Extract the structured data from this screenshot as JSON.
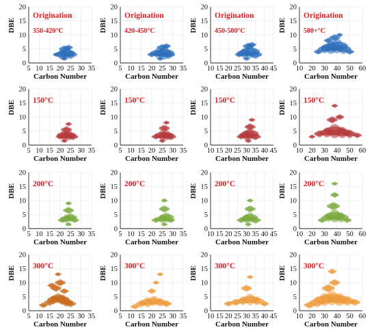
{
  "chart_data": [
    {
      "type": "scatter",
      "title": "Origination",
      "subtitle": "350-420°C",
      "xlabel": "Carbon Number",
      "ylabel": "DBE",
      "xlim": [
        5,
        35
      ],
      "ylim": [
        0,
        20
      ],
      "xticks": [
        5,
        10,
        15,
        20,
        25,
        30,
        35
      ],
      "yticks": [
        0,
        5,
        10,
        15,
        20
      ],
      "color": "#2e6fba",
      "bubbles": [
        {
          "x": 18,
          "y": 3,
          "s": 1.5
        },
        {
          "x": 21,
          "y": 3,
          "s": 3.5
        },
        {
          "x": 23,
          "y": 3.5,
          "s": 4
        },
        {
          "x": 25,
          "y": 3,
          "s": 3
        },
        {
          "x": 22,
          "y": 5,
          "s": 2.5
        },
        {
          "x": 24,
          "y": 5.5,
          "s": 2
        },
        {
          "x": 22,
          "y": 1.5,
          "s": 1.5
        }
      ]
    },
    {
      "type": "scatter",
      "title": "Origination",
      "subtitle": "420-450°C",
      "xlabel": "Carbon Number",
      "ylabel": "DBE",
      "xlim": [
        5,
        35
      ],
      "ylim": [
        0,
        20
      ],
      "xticks": [
        5,
        10,
        15,
        20,
        25,
        30,
        35
      ],
      "yticks": [
        0,
        5,
        10,
        15,
        20
      ],
      "color": "#2e6fba",
      "bubbles": [
        {
          "x": 20,
          "y": 3,
          "s": 2
        },
        {
          "x": 23,
          "y": 3.5,
          "s": 3.5
        },
        {
          "x": 26,
          "y": 3.5,
          "s": 4.5
        },
        {
          "x": 28,
          "y": 3,
          "s": 3
        },
        {
          "x": 25,
          "y": 5.5,
          "s": 2.5
        },
        {
          "x": 27,
          "y": 6,
          "s": 2
        },
        {
          "x": 24,
          "y": 1.5,
          "s": 1.5
        }
      ]
    },
    {
      "type": "scatter",
      "title": "Origination",
      "subtitle": "450-500°C",
      "xlabel": "Carbon Number",
      "ylabel": "DBE",
      "xlim": [
        10,
        45
      ],
      "ylim": [
        0,
        20
      ],
      "xticks": [
        10,
        15,
        20,
        25,
        30,
        35,
        40,
        45
      ],
      "yticks": [
        0,
        5,
        10,
        15,
        20
      ],
      "color": "#2e6fba",
      "bubbles": [
        {
          "x": 26,
          "y": 3,
          "s": 2
        },
        {
          "x": 29,
          "y": 3.5,
          "s": 3.5
        },
        {
          "x": 32,
          "y": 4,
          "s": 4.5
        },
        {
          "x": 35,
          "y": 3,
          "s": 3
        },
        {
          "x": 31,
          "y": 6,
          "s": 2.5
        },
        {
          "x": 33,
          "y": 6.5,
          "s": 2
        },
        {
          "x": 30,
          "y": 1.5,
          "s": 1.5
        }
      ]
    },
    {
      "type": "scatter",
      "title": "Origination",
      "subtitle": "500+°C",
      "xlabel": "Carbon Number",
      "ylabel": "DBE",
      "xlim": [
        10,
        60
      ],
      "ylim": [
        0,
        20
      ],
      "xticks": [
        10,
        20,
        30,
        40,
        50,
        60
      ],
      "yticks": [
        0,
        5,
        10,
        15,
        20
      ],
      "color": "#2e6fba",
      "bubbles": [
        {
          "x": 25,
          "y": 4,
          "s": 2
        },
        {
          "x": 30,
          "y": 5,
          "s": 3
        },
        {
          "x": 35,
          "y": 5.5,
          "s": 4.5
        },
        {
          "x": 40,
          "y": 6,
          "s": 5
        },
        {
          "x": 45,
          "y": 5,
          "s": 3.5
        },
        {
          "x": 50,
          "y": 4,
          "s": 2
        },
        {
          "x": 38,
          "y": 9,
          "s": 2.5
        },
        {
          "x": 42,
          "y": 10,
          "s": 1.5
        },
        {
          "x": 33,
          "y": 8,
          "s": 2
        }
      ]
    },
    {
      "type": "scatter",
      "subtitle": "150°C",
      "xlabel": "Carbon Number",
      "ylabel": "DBE",
      "xlim": [
        5,
        35
      ],
      "ylim": [
        0,
        20
      ],
      "xticks": [
        5,
        10,
        15,
        20,
        25,
        30,
        35
      ],
      "yticks": [
        0,
        5,
        10,
        15,
        20
      ],
      "color": "#b5393b",
      "bubbles": [
        {
          "x": 20,
          "y": 3,
          "s": 2
        },
        {
          "x": 22,
          "y": 3.5,
          "s": 3.5
        },
        {
          "x": 24,
          "y": 3.5,
          "s": 3.5
        },
        {
          "x": 26,
          "y": 3,
          "s": 2.5
        },
        {
          "x": 23,
          "y": 5.5,
          "s": 2.5
        },
        {
          "x": 24,
          "y": 7.5,
          "s": 1.5
        },
        {
          "x": 22,
          "y": 1.5,
          "s": 1.5
        }
      ]
    },
    {
      "type": "scatter",
      "subtitle": "150°C",
      "xlabel": "Carbon Number",
      "ylabel": "DBE",
      "xlim": [
        5,
        35
      ],
      "ylim": [
        0,
        20
      ],
      "xticks": [
        5,
        10,
        15,
        20,
        25,
        30,
        35
      ],
      "yticks": [
        0,
        5,
        10,
        15,
        20
      ],
      "color": "#b5393b",
      "bubbles": [
        {
          "x": 22,
          "y": 3,
          "s": 2
        },
        {
          "x": 25,
          "y": 3.5,
          "s": 3.5
        },
        {
          "x": 27,
          "y": 3.5,
          "s": 3.5
        },
        {
          "x": 29,
          "y": 3,
          "s": 2.5
        },
        {
          "x": 26,
          "y": 6,
          "s": 2.5
        },
        {
          "x": 27,
          "y": 8,
          "s": 1.5
        },
        {
          "x": 25,
          "y": 1.5,
          "s": 1.5
        }
      ]
    },
    {
      "type": "scatter",
      "subtitle": "150°C",
      "xlabel": "Carbon Number",
      "ylabel": "DBE",
      "xlim": [
        10,
        45
      ],
      "ylim": [
        0,
        20
      ],
      "xticks": [
        10,
        15,
        20,
        25,
        30,
        35,
        40,
        45
      ],
      "yticks": [
        0,
        5,
        10,
        15,
        20
      ],
      "color": "#b5393b",
      "bubbles": [
        {
          "x": 27,
          "y": 3,
          "s": 2
        },
        {
          "x": 30,
          "y": 3.5,
          "s": 3.5
        },
        {
          "x": 32,
          "y": 4,
          "s": 4
        },
        {
          "x": 35,
          "y": 3,
          "s": 2.5
        },
        {
          "x": 32,
          "y": 6.5,
          "s": 2.5
        },
        {
          "x": 33,
          "y": 9,
          "s": 1.5
        },
        {
          "x": 31,
          "y": 1.5,
          "s": 1.5
        }
      ]
    },
    {
      "type": "scatter",
      "subtitle": "150°C",
      "xlabel": "Carbon Number",
      "ylabel": "DBE",
      "xlim": [
        10,
        60
      ],
      "ylim": [
        0,
        20
      ],
      "xticks": [
        10,
        20,
        30,
        40,
        50,
        60
      ],
      "yticks": [
        0,
        5,
        10,
        15,
        20
      ],
      "color": "#b5393b",
      "bubbles": [
        {
          "x": 20,
          "y": 3,
          "s": 1.5
        },
        {
          "x": 26,
          "y": 4,
          "s": 2.5
        },
        {
          "x": 32,
          "y": 4.5,
          "s": 3.5
        },
        {
          "x": 38,
          "y": 5,
          "s": 5
        },
        {
          "x": 44,
          "y": 4.5,
          "s": 4
        },
        {
          "x": 50,
          "y": 4,
          "s": 3
        },
        {
          "x": 56,
          "y": 3.5,
          "s": 2
        },
        {
          "x": 36,
          "y": 9,
          "s": 2.5
        },
        {
          "x": 42,
          "y": 10,
          "s": 2
        },
        {
          "x": 38,
          "y": 14,
          "s": 1.5
        }
      ]
    },
    {
      "type": "scatter",
      "subtitle": "200°C",
      "xlabel": "Carbon Number",
      "ylabel": "DBE",
      "xlim": [
        5,
        35
      ],
      "ylim": [
        0,
        20
      ],
      "xticks": [
        5,
        10,
        15,
        20,
        25,
        30,
        35
      ],
      "yticks": [
        0,
        5,
        10,
        15,
        20
      ],
      "color": "#7aaa3d",
      "bubbles": [
        {
          "x": 21,
          "y": 3,
          "s": 2
        },
        {
          "x": 23,
          "y": 3.5,
          "s": 3
        },
        {
          "x": 25,
          "y": 4,
          "s": 3
        },
        {
          "x": 27,
          "y": 3,
          "s": 2
        },
        {
          "x": 24,
          "y": 6.5,
          "s": 2.5
        },
        {
          "x": 24,
          "y": 9,
          "s": 1.5
        },
        {
          "x": 24,
          "y": 1.5,
          "s": 1.5
        }
      ]
    },
    {
      "type": "scatter",
      "subtitle": "200°C",
      "xlabel": "Carbon Number",
      "ylabel": "DBE",
      "xlim": [
        5,
        35
      ],
      "ylim": [
        0,
        20
      ],
      "xticks": [
        5,
        10,
        15,
        20,
        25,
        30,
        35
      ],
      "yticks": [
        0,
        5,
        10,
        15,
        20
      ],
      "color": "#7aaa3d",
      "bubbles": [
        {
          "x": 22,
          "y": 3,
          "s": 2
        },
        {
          "x": 25,
          "y": 3.5,
          "s": 3
        },
        {
          "x": 27,
          "y": 4,
          "s": 3.5
        },
        {
          "x": 29,
          "y": 3,
          "s": 2
        },
        {
          "x": 26,
          "y": 7,
          "s": 2.5
        },
        {
          "x": 26,
          "y": 10,
          "s": 1.5
        },
        {
          "x": 26,
          "y": 1.5,
          "s": 1.5
        }
      ]
    },
    {
      "type": "scatter",
      "subtitle": "200°C",
      "xlabel": "Carbon Number",
      "ylabel": "DBE",
      "xlim": [
        10,
        45
      ],
      "ylim": [
        0,
        20
      ],
      "xticks": [
        10,
        15,
        20,
        25,
        30,
        35,
        40,
        45
      ],
      "yticks": [
        0,
        5,
        10,
        15,
        20
      ],
      "color": "#7aaa3d",
      "bubbles": [
        {
          "x": 27,
          "y": 3,
          "s": 2
        },
        {
          "x": 30,
          "y": 3.5,
          "s": 3
        },
        {
          "x": 32,
          "y": 4,
          "s": 3.5
        },
        {
          "x": 35,
          "y": 3,
          "s": 2.5
        },
        {
          "x": 32,
          "y": 7,
          "s": 2.5
        },
        {
          "x": 32,
          "y": 10,
          "s": 1.5
        },
        {
          "x": 31,
          "y": 1.5,
          "s": 1.5
        }
      ]
    },
    {
      "type": "scatter",
      "subtitle": "200°C",
      "xlabel": "Carbon Number",
      "ylabel": "DBE",
      "xlim": [
        10,
        60
      ],
      "ylim": [
        0,
        20
      ],
      "xticks": [
        10,
        20,
        30,
        40,
        50,
        60
      ],
      "yticks": [
        0,
        5,
        10,
        15,
        20
      ],
      "color": "#7aaa3d",
      "bubbles": [
        {
          "x": 28,
          "y": 3,
          "s": 2
        },
        {
          "x": 33,
          "y": 4,
          "s": 3
        },
        {
          "x": 38,
          "y": 4.5,
          "s": 4.5
        },
        {
          "x": 43,
          "y": 4,
          "s": 3.5
        },
        {
          "x": 48,
          "y": 3,
          "s": 2
        },
        {
          "x": 37,
          "y": 8,
          "s": 3
        },
        {
          "x": 38,
          "y": 12,
          "s": 2
        },
        {
          "x": 38,
          "y": 16,
          "s": 1.5
        }
      ]
    },
    {
      "type": "scatter",
      "subtitle": "300°C",
      "xlabel": "Carbon Number",
      "ylabel": "DBE",
      "xlim": [
        5,
        35
      ],
      "ylim": [
        0,
        20
      ],
      "xticks": [
        5,
        10,
        15,
        20,
        25,
        30,
        35
      ],
      "yticks": [
        0,
        5,
        10,
        15,
        20
      ],
      "color": "#c76a1c",
      "bubbles": [
        {
          "x": 12,
          "y": 2,
          "s": 2
        },
        {
          "x": 15,
          "y": 3,
          "s": 2.5
        },
        {
          "x": 17,
          "y": 4,
          "s": 3
        },
        {
          "x": 19,
          "y": 4.5,
          "s": 3.5
        },
        {
          "x": 21,
          "y": 4,
          "s": 3.5
        },
        {
          "x": 23,
          "y": 3,
          "s": 3
        },
        {
          "x": 25,
          "y": 2.5,
          "s": 2.5
        },
        {
          "x": 18,
          "y": 8,
          "s": 2.5
        },
        {
          "x": 20,
          "y": 10,
          "s": 2.5
        },
        {
          "x": 16,
          "y": 9,
          "s": 2
        },
        {
          "x": 19,
          "y": 13,
          "s": 1.5
        },
        {
          "x": 22,
          "y": 7,
          "s": 2
        }
      ]
    },
    {
      "type": "scatter",
      "subtitle": "300°C",
      "xlabel": "Carbon Number",
      "ylabel": "DBE",
      "xlim": [
        5,
        35
      ],
      "ylim": [
        0,
        20
      ],
      "xticks": [
        5,
        10,
        15,
        20,
        25,
        30,
        35
      ],
      "yticks": [
        0,
        5,
        10,
        15,
        20
      ],
      "color": "#ee9a3b",
      "bubbles": [
        {
          "x": 12,
          "y": 1.5,
          "s": 2
        },
        {
          "x": 15,
          "y": 2.5,
          "s": 2.5
        },
        {
          "x": 18,
          "y": 3,
          "s": 3.5
        },
        {
          "x": 21,
          "y": 3.5,
          "s": 3.5
        },
        {
          "x": 24,
          "y": 3,
          "s": 3
        },
        {
          "x": 27,
          "y": 2.5,
          "s": 2.5
        },
        {
          "x": 20,
          "y": 7,
          "s": 2
        },
        {
          "x": 22,
          "y": 10,
          "s": 1.5
        },
        {
          "x": 24,
          "y": 13,
          "s": 1.5
        }
      ]
    },
    {
      "type": "scatter",
      "subtitle": "300°C",
      "xlabel": "Carbon Number",
      "ylabel": "DBE",
      "xlim": [
        10,
        45
      ],
      "ylim": [
        0,
        20
      ],
      "xticks": [
        10,
        15,
        20,
        25,
        30,
        35,
        40,
        45
      ],
      "yticks": [
        0,
        5,
        10,
        15,
        20
      ],
      "color": "#ee9a3b",
      "bubbles": [
        {
          "x": 20,
          "y": 2.5,
          "s": 2
        },
        {
          "x": 24,
          "y": 3,
          "s": 2.5
        },
        {
          "x": 28,
          "y": 3.5,
          "s": 3
        },
        {
          "x": 32,
          "y": 4,
          "s": 4
        },
        {
          "x": 36,
          "y": 3.5,
          "s": 3
        },
        {
          "x": 40,
          "y": 2.5,
          "s": 2
        },
        {
          "x": 30,
          "y": 8,
          "s": 2.5
        },
        {
          "x": 32,
          "y": 12,
          "s": 1.5
        }
      ]
    },
    {
      "type": "scatter",
      "subtitle": "300°C",
      "xlabel": "Carbon Number",
      "ylabel": "DBE",
      "xlim": [
        10,
        60
      ],
      "ylim": [
        0,
        20
      ],
      "xticks": [
        10,
        20,
        30,
        40,
        50,
        60
      ],
      "yticks": [
        0,
        5,
        10,
        15,
        20
      ],
      "color": "#ee9a3b",
      "bubbles": [
        {
          "x": 18,
          "y": 2,
          "s": 2.5
        },
        {
          "x": 24,
          "y": 3,
          "s": 3.5
        },
        {
          "x": 30,
          "y": 4,
          "s": 4.5
        },
        {
          "x": 36,
          "y": 4.5,
          "s": 5
        },
        {
          "x": 42,
          "y": 4,
          "s": 4.5
        },
        {
          "x": 48,
          "y": 3.5,
          "s": 3.5
        },
        {
          "x": 54,
          "y": 3,
          "s": 2.5
        },
        {
          "x": 33,
          "y": 8,
          "s": 3
        },
        {
          "x": 38,
          "y": 10,
          "s": 2.5
        },
        {
          "x": 36,
          "y": 14,
          "s": 2
        }
      ]
    }
  ]
}
